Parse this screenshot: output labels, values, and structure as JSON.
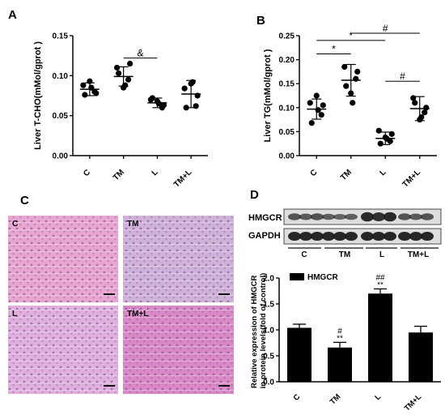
{
  "panels": {
    "a": "A",
    "b": "B",
    "c": "C",
    "d": "D"
  },
  "micrographs": [
    {
      "label": "C",
      "bg": "#e6a6d0"
    },
    {
      "label": "TM",
      "bg": "#cfb2d8"
    },
    {
      "label": "L",
      "bg": "#dfb0dc"
    },
    {
      "label": "TM+L",
      "bg": "#d98ac6"
    }
  ],
  "blot": {
    "bands": [
      "HMGCR",
      "GAPDH"
    ],
    "groups": [
      "C",
      "TM",
      "L",
      "TM+L"
    ]
  },
  "chart_data": [
    {
      "type": "scatter",
      "ylabel": "Liver T-CHO(mMol/gprot )",
      "ylim": [
        0,
        0.15
      ],
      "yticks": [
        "0.00",
        "0.05",
        "0.10",
        "0.15"
      ],
      "categories": [
        "C",
        "TM",
        "L",
        "TM+L"
      ],
      "means": [
        0.083,
        0.099,
        0.066,
        0.077
      ],
      "sd": [
        0.008,
        0.012,
        0.006,
        0.017
      ],
      "points": [
        [
          0.088,
          0.08,
          0.093,
          0.076,
          0.078,
          0.085
        ],
        [
          0.11,
          0.095,
          0.085,
          0.103,
          0.115,
          0.088
        ],
        [
          0.07,
          0.06,
          0.068,
          0.072,
          0.063,
          0.065
        ],
        [
          0.084,
          0.062,
          0.09,
          0.06,
          0.075,
          0.092
        ]
      ],
      "annotations": [
        {
          "symbol": "&",
          "from": "TM",
          "to": "L"
        }
      ]
    },
    {
      "type": "scatter",
      "ylabel": "Liver TG(mMol/gprot )",
      "ylim": [
        0,
        0.25
      ],
      "yticks": [
        "0.00",
        "0.05",
        "0.10",
        "0.15",
        "0.20",
        "0.25"
      ],
      "categories": [
        "C",
        "TM",
        "L",
        "TM+L"
      ],
      "means": [
        0.097,
        0.157,
        0.036,
        0.098
      ],
      "sd": [
        0.021,
        0.033,
        0.013,
        0.025
      ],
      "points": [
        [
          0.11,
          0.085,
          0.125,
          0.068,
          0.105,
          0.095
        ],
        [
          0.185,
          0.16,
          0.13,
          0.145,
          0.175,
          0.11
        ],
        [
          0.052,
          0.03,
          0.038,
          0.025,
          0.045,
          0.035
        ],
        [
          0.12,
          0.09,
          0.075,
          0.11,
          0.1,
          0.08
        ]
      ],
      "annotations": [
        {
          "symbol": "*",
          "from": "C",
          "to": "TM"
        },
        {
          "symbol": "*",
          "from": "C",
          "to": "L"
        },
        {
          "symbol": "#",
          "from": "TM",
          "to": "TM+L"
        },
        {
          "symbol": "#",
          "from": "L",
          "to": "TM+L"
        }
      ]
    },
    {
      "type": "bar",
      "ylabel": "Relative expression of HMGCR in protein levels(fold of control)",
      "ylim": [
        0,
        2.0
      ],
      "yticks": [
        "0.0",
        "0.5",
        "1.0",
        "1.5",
        "2.0"
      ],
      "categories": [
        "C",
        "TM",
        "L",
        "TM+L"
      ],
      "series": [
        {
          "name": "HMGCR",
          "values": [
            1.04,
            0.66,
            1.7,
            0.95
          ],
          "err": [
            0.07,
            0.1,
            0.09,
            0.12
          ]
        }
      ],
      "bar_labels": [
        {
          "category": "TM",
          "lines": [
            "#",
            "**"
          ]
        },
        {
          "category": "L",
          "lines": [
            "##",
            "**"
          ]
        }
      ],
      "legend": "top-left"
    }
  ]
}
